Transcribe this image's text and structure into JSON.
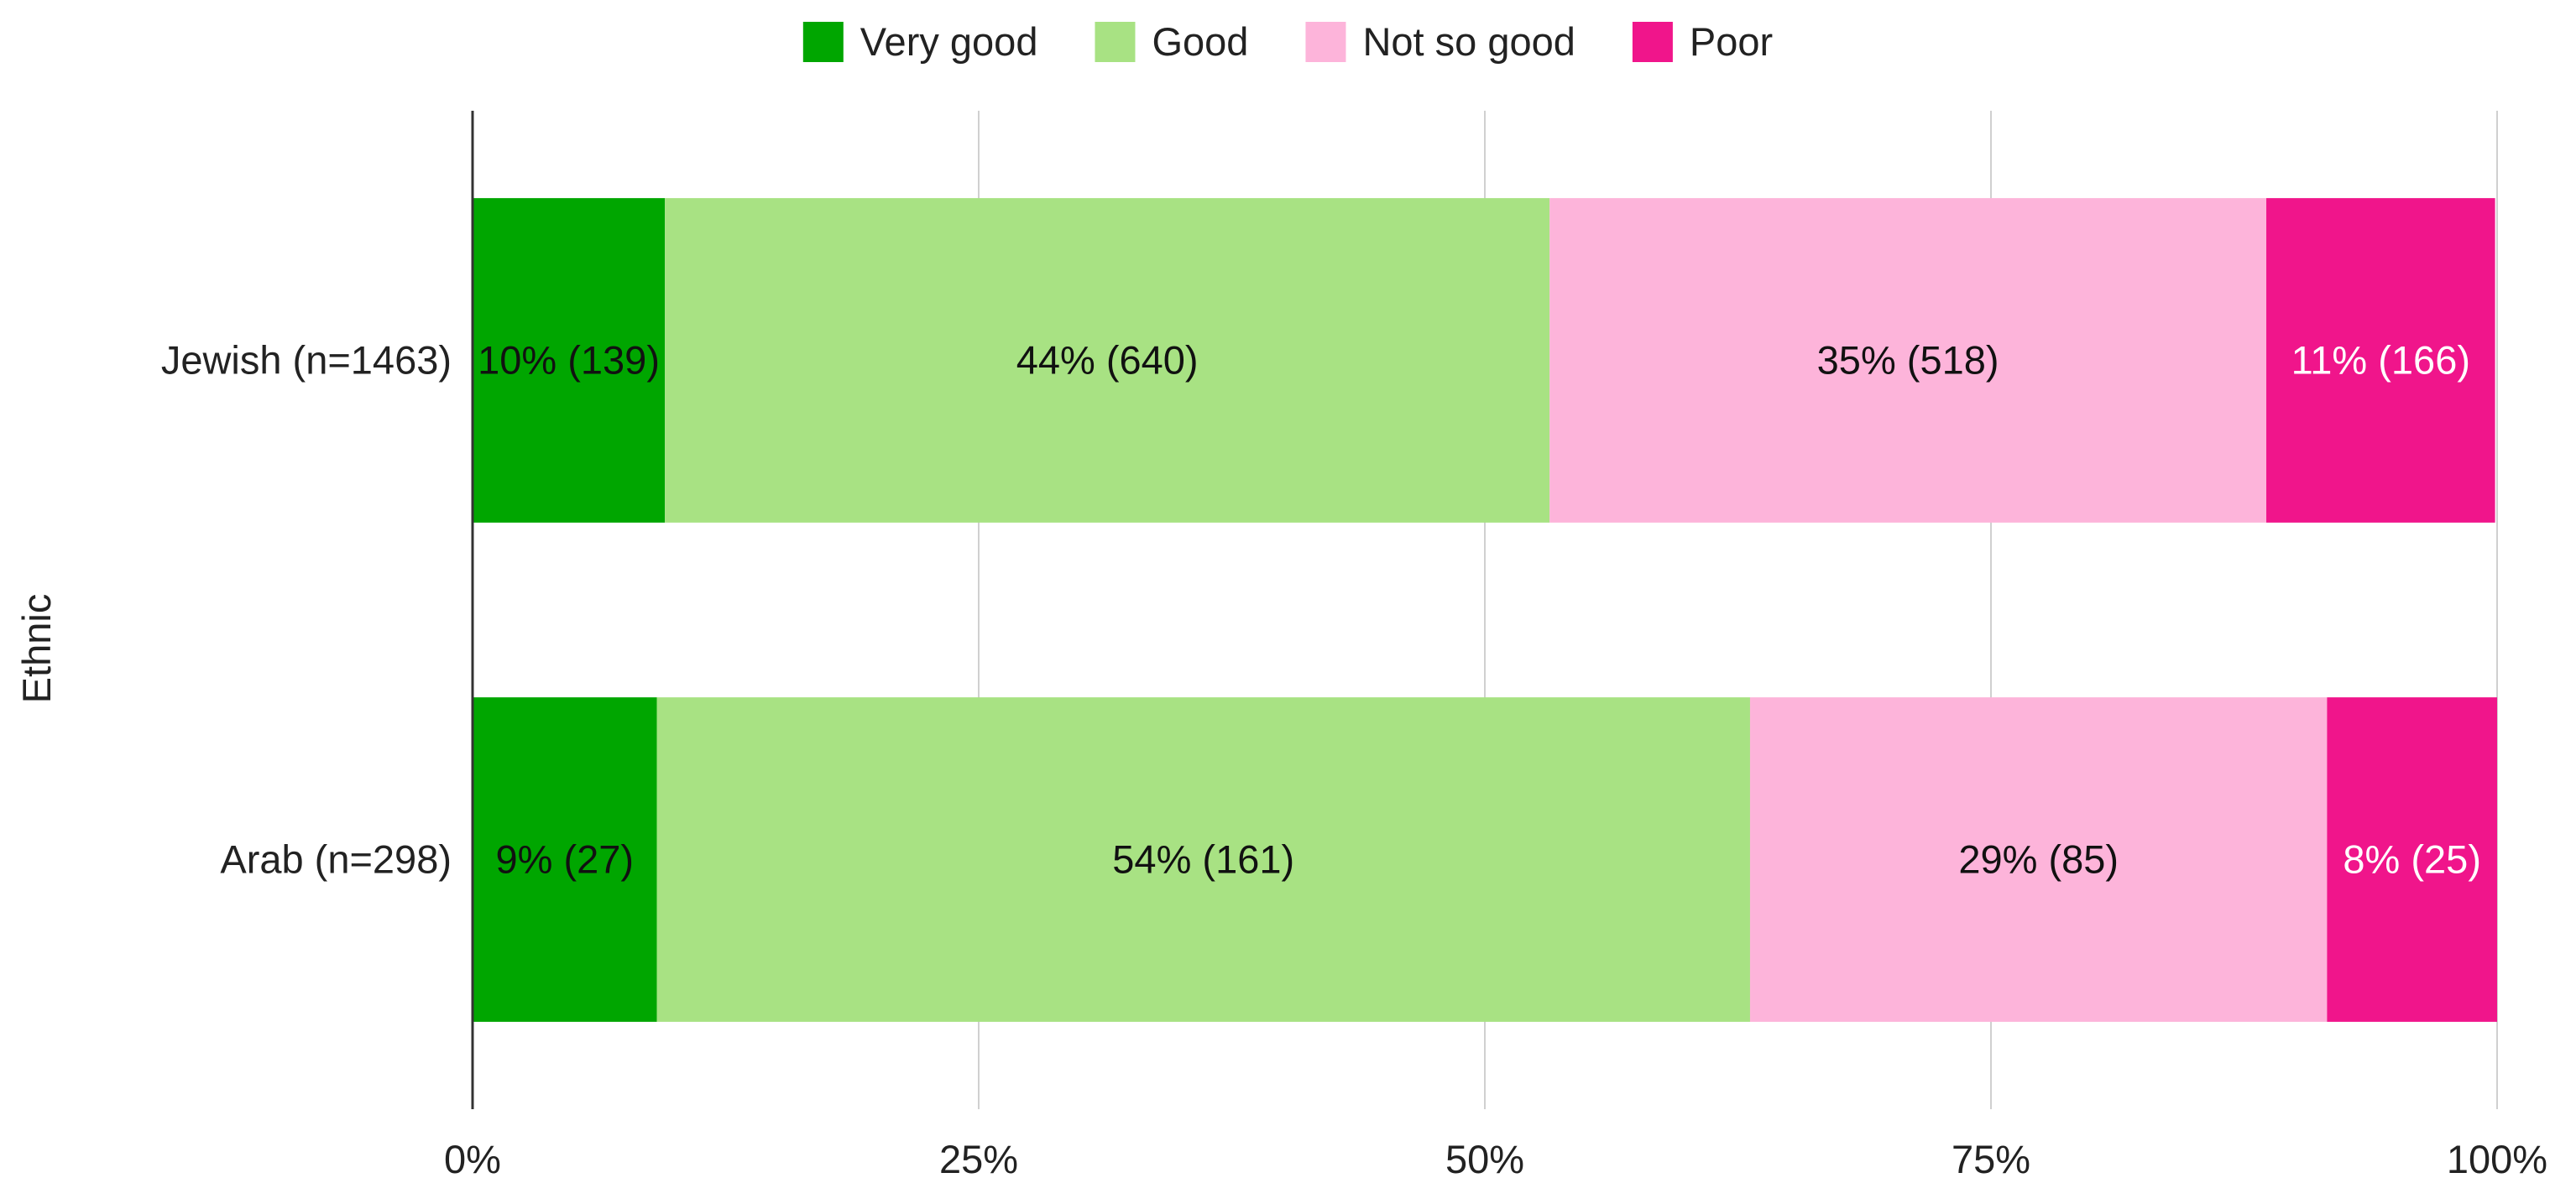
{
  "chart_data": {
    "type": "bar",
    "orientation": "horizontal",
    "stacked": true,
    "normalized": true,
    "ylabel": "Ethnic",
    "categories": [
      "Jewish (n=1463)",
      "Arab (n=298)"
    ],
    "series": [
      {
        "name": "Very good",
        "color": "#00a600",
        "label_color": "#111111",
        "values": [
          9.5,
          9.1
        ],
        "labels": [
          "10% (139)",
          "9% (27)"
        ]
      },
      {
        "name": "Good",
        "color": "#a8e283",
        "label_color": "#111111",
        "values": [
          43.7,
          54.0
        ],
        "labels": [
          "44% (640)",
          "54% (161)"
        ]
      },
      {
        "name": "Not so good",
        "color": "#fdb4da",
        "label_color": "#111111",
        "values": [
          35.4,
          28.5
        ],
        "labels": [
          "35% (518)",
          "29% (85)"
        ]
      },
      {
        "name": "Poor",
        "color": "#f0158b",
        "label_color": "#ffffff",
        "values": [
          11.3,
          8.4
        ],
        "labels": [
          "11% (166)",
          "8% (25)"
        ]
      }
    ],
    "xlim": [
      0,
      100
    ],
    "xticks": [
      0,
      25,
      50,
      75,
      100
    ],
    "xtick_labels": [
      "0%",
      "25%",
      "50%",
      "75%",
      "100%"
    ],
    "grid": "vertical",
    "legend_position": "top"
  }
}
